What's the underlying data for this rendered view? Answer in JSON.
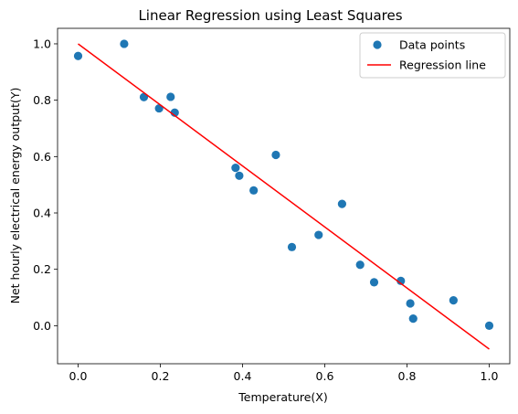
{
  "chart_data": {
    "type": "scatter",
    "title": "Linear Regression using Least Squares",
    "xlabel": "Temperature(X)",
    "ylabel": "Net hourly electrical energy output(Y)",
    "xlim": [
      -0.05,
      1.05
    ],
    "ylim": [
      -0.135,
      1.055
    ],
    "xticks": [
      "0.0",
      "0.2",
      "0.4",
      "0.6",
      "0.8",
      "1.0"
    ],
    "yticks": [
      "0.0",
      "0.2",
      "0.4",
      "0.6",
      "0.8",
      "1.0"
    ],
    "grid": false,
    "legend_position": "top-right",
    "series": [
      {
        "name": "Data points",
        "kind": "scatter",
        "color": "#1f77b4",
        "points": [
          {
            "x": 0.0,
            "y": 0.957
          },
          {
            "x": 0.112,
            "y": 1.0
          },
          {
            "x": 0.16,
            "y": 0.811
          },
          {
            "x": 0.197,
            "y": 0.771
          },
          {
            "x": 0.225,
            "y": 0.812
          },
          {
            "x": 0.235,
            "y": 0.756
          },
          {
            "x": 0.383,
            "y": 0.56
          },
          {
            "x": 0.392,
            "y": 0.532
          },
          {
            "x": 0.427,
            "y": 0.48
          },
          {
            "x": 0.481,
            "y": 0.606
          },
          {
            "x": 0.52,
            "y": 0.279
          },
          {
            "x": 0.585,
            "y": 0.322
          },
          {
            "x": 0.642,
            "y": 0.432
          },
          {
            "x": 0.686,
            "y": 0.216
          },
          {
            "x": 0.72,
            "y": 0.154
          },
          {
            "x": 0.785,
            "y": 0.159
          },
          {
            "x": 0.808,
            "y": 0.079
          },
          {
            "x": 0.815,
            "y": 0.025
          },
          {
            "x": 0.913,
            "y": 0.09
          },
          {
            "x": 1.0,
            "y": 0.0
          }
        ]
      },
      {
        "name": "Regression line",
        "kind": "line",
        "color": "#ff0000",
        "points": [
          {
            "x": 0.0,
            "y": 1.0
          },
          {
            "x": 1.0,
            "y": -0.083
          }
        ]
      }
    ]
  }
}
